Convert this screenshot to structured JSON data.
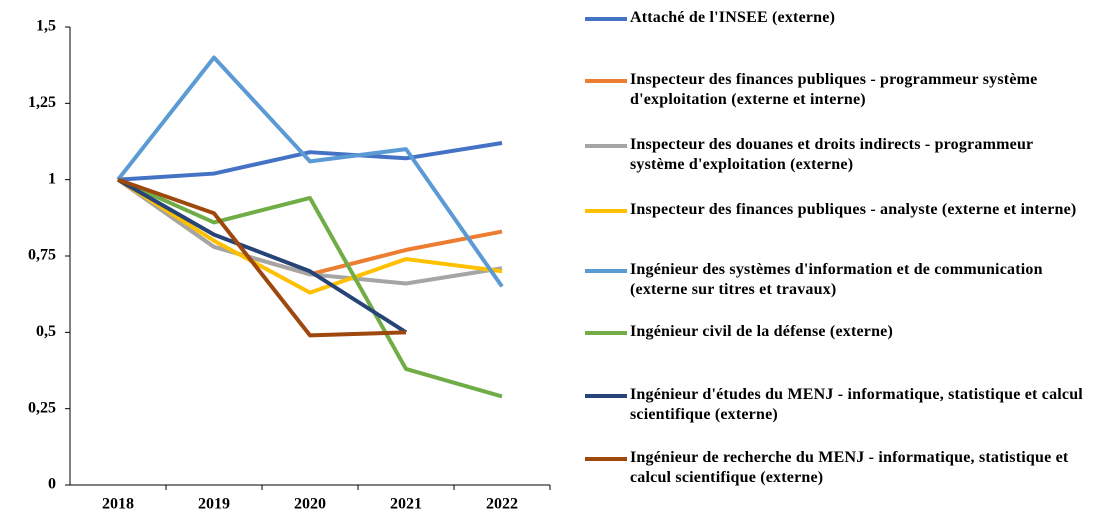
{
  "chart_data": {
    "type": "line",
    "categories": [
      "2018",
      "2019",
      "2020",
      "2021",
      "2022"
    ],
    "ylim": [
      0,
      1.5
    ],
    "yticks": [
      0,
      {
        "value": 0.25,
        "label": "0,25"
      },
      {
        "value": 0.5,
        "label": "0,5"
      },
      {
        "value": 0.75,
        "label": "0,75"
      },
      1,
      {
        "value": 1.25,
        "label": "1,25"
      },
      {
        "value": 1.5,
        "label": "1,5"
      }
    ],
    "grid": false,
    "legend": "right",
    "series": [
      {
        "name": "Attaché de l'INSEE (externe)",
        "color": "#4472c4",
        "values": [
          1,
          1.02,
          1.09,
          1.07,
          1.12
        ]
      },
      {
        "name": "Inspecteur des finances publiques - programmeur système d'exploitation (externe et interne)",
        "color": "#ed7d31",
        "values": [
          1,
          0.78,
          0.69,
          0.77,
          0.83
        ]
      },
      {
        "name": "Inspecteur des douanes et droits indirects - programmeur système d'exploitation (externe)",
        "color": "#a5a5a5",
        "values": [
          1,
          0.78,
          0.69,
          0.66,
          0.71
        ]
      },
      {
        "name": "Inspecteur des finances publiques - analyste (externe et interne)",
        "color": "#ffc000",
        "values": [
          1,
          0.8,
          0.63,
          0.74,
          0.7
        ]
      },
      {
        "name": "Ingénieur des systèmes d'information et de communication (externe sur titres et travaux)",
        "color": "#5b9bd5",
        "values": [
          1,
          1.4,
          1.06,
          1.1,
          0.65
        ]
      },
      {
        "name": "Ingénieur civil de la défense (externe)",
        "color": "#70ad47",
        "values": [
          1,
          0.86,
          0.94,
          0.38,
          0.29
        ]
      },
      {
        "name": "Ingénieur d'études du MENJ - informatique, statistique et calcul scientifique (externe)",
        "color": "#264478",
        "values": [
          1,
          0.82,
          0.7,
          0.5,
          null
        ]
      },
      {
        "name": "Ingénieur de recherche du MENJ - informatique, statistique et calcul scientifique (externe)",
        "color": "#9e480e",
        "values": [
          1,
          0.89,
          0.49,
          0.5,
          null
        ]
      }
    ]
  }
}
